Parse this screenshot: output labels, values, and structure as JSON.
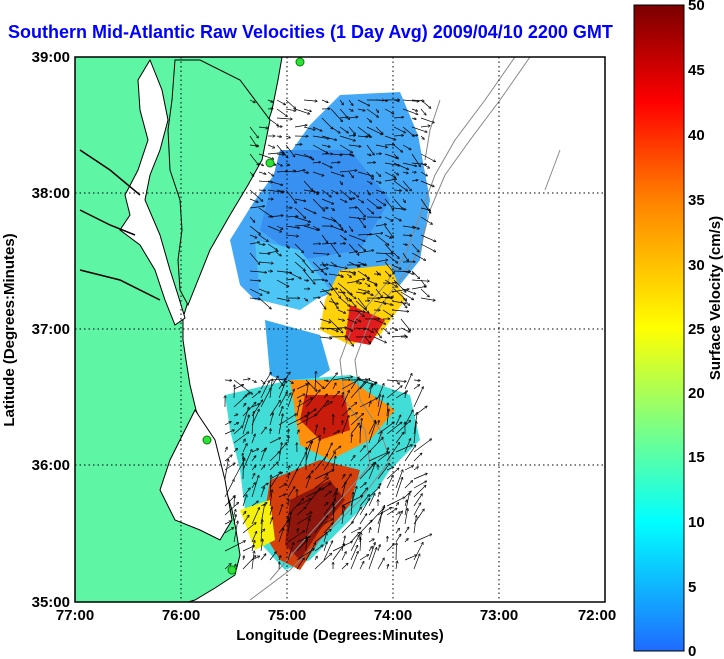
{
  "title": "Southern Mid-Atlantic Raw Velocities (1 Day Avg) 2009/04/10 2200 GMT",
  "map": {
    "xlabel": "Longitude (Degrees:Minutes)",
    "ylabel": "Latitude (Degrees:Minutes)",
    "lon_ticks": [
      "77:00",
      "76:00",
      "75:00",
      "74:00",
      "73:00",
      "72:00"
    ],
    "lat_ticks": [
      "39:00",
      "38:00",
      "37:00",
      "36:00",
      "35:00"
    ],
    "grid": "dotted",
    "land_color": "#5ef5a5",
    "coast_color": "#000000",
    "isobath_color": "#888888",
    "station_color": "#2fe03a"
  },
  "colorbar": {
    "label": "Surface Velocity (cm/s)",
    "ticks": [
      "50",
      "45",
      "40",
      "35",
      "30",
      "25",
      "20",
      "15",
      "10",
      "5",
      "0"
    ],
    "min": 0,
    "max": 50,
    "colors": [
      "#1f6bff",
      "#00ffff",
      "#ffff00",
      "#ff8000",
      "#ff0000",
      "#7a0000"
    ]
  }
}
